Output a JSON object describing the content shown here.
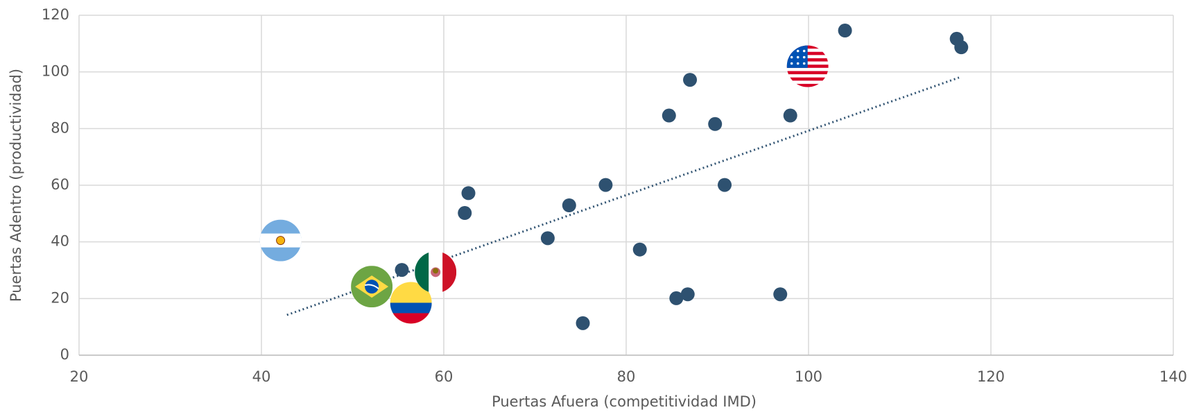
{
  "chart_data": {
    "type": "scatter",
    "xlabel": "Puertas Afuera (competitividad IMD)",
    "ylabel": "Puertas Adentro (productividad)",
    "xlim": [
      20,
      140
    ],
    "xticks": [
      20,
      40,
      60,
      80,
      100,
      120,
      140
    ],
    "ylim": [
      0,
      120
    ],
    "yticks": [
      0,
      20,
      40,
      60,
      80,
      100,
      120
    ],
    "grid": true,
    "series": [
      {
        "color": "#2e5170",
        "x": [
          104.0,
          116.25,
          116.75,
          87.0,
          84.7,
          89.75,
          98.0,
          77.75,
          90.8,
          62.7,
          62.3,
          73.75,
          71.4,
          81.5,
          55.4,
          85.5,
          86.75,
          96.9,
          75.25
        ],
        "values": [
          114.6,
          111.7,
          108.7,
          97.2,
          84.6,
          81.6,
          84.6,
          60.1,
          60.1,
          57.2,
          50.2,
          52.9,
          41.3,
          37.3,
          30.1,
          20.1,
          21.5,
          21.5,
          11.3
        ]
      },
      {
        "markers": [
          "us",
          "ar",
          "br",
          "co",
          "mx"
        ],
        "x": [
          99.9,
          42.1,
          52.1,
          56.4,
          59.1
        ],
        "values": [
          102.0,
          40.5,
          24.2,
          18.5,
          29.3
        ]
      }
    ],
    "trendline": {
      "color": "#2e5170",
      "x": [
        42.8,
        116.5
      ],
      "values": [
        14.2,
        98.0
      ]
    }
  }
}
